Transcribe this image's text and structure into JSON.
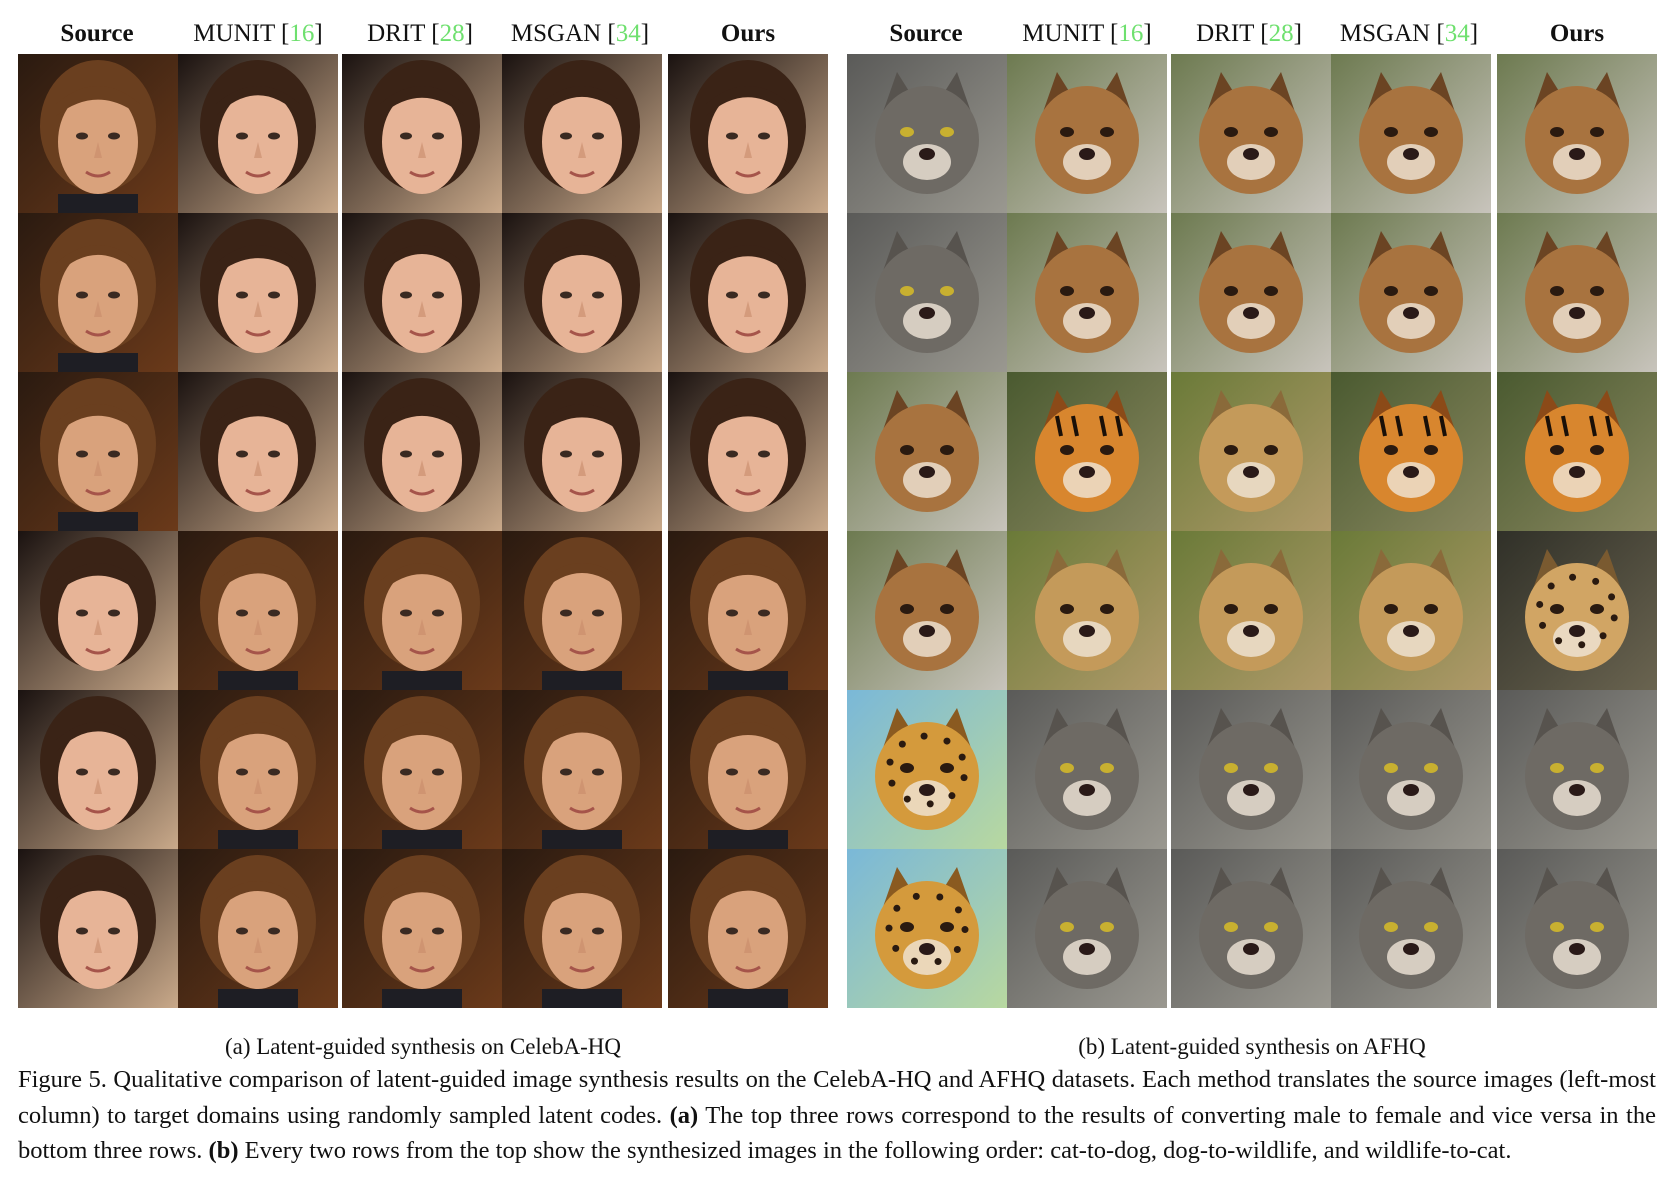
{
  "panels": [
    {
      "id": "a",
      "headers": [
        {
          "label": "Source",
          "ref": ""
        },
        {
          "label": "MUNIT [",
          "ref": "16",
          "close": "]"
        },
        {
          "label": "DRIT [",
          "ref": "28",
          "close": "]"
        },
        {
          "label": "MSGAN [",
          "ref": "34",
          "close": "]"
        },
        {
          "label": "Ours",
          "ref": ""
        }
      ],
      "subcaption": "(a) Latent-guided synthesis on CelebA-HQ",
      "rows": [
        {
          "subjects": [
            "male face",
            "female face",
            "female face",
            "female face",
            "female face"
          ]
        },
        {
          "subjects": [
            "male face",
            "female face",
            "female face",
            "female face",
            "female face"
          ]
        },
        {
          "subjects": [
            "male face",
            "female face",
            "female face",
            "female face",
            "female face"
          ]
        },
        {
          "subjects": [
            "female face",
            "male face",
            "male face",
            "male face",
            "male face"
          ]
        },
        {
          "subjects": [
            "female face",
            "male face",
            "male face",
            "male face",
            "male face"
          ]
        },
        {
          "subjects": [
            "female face",
            "male face",
            "male face",
            "male face",
            "male face"
          ]
        }
      ]
    },
    {
      "id": "b",
      "headers": [
        {
          "label": "Source",
          "ref": ""
        },
        {
          "label": "MUNIT [",
          "ref": "16",
          "close": "]"
        },
        {
          "label": "DRIT [",
          "ref": "28",
          "close": "]"
        },
        {
          "label": "MSGAN [",
          "ref": "34",
          "close": "]"
        },
        {
          "label": "Ours",
          "ref": ""
        }
      ],
      "subcaption": "(b) Latent-guided synthesis on AFHQ",
      "rows": [
        {
          "subjects": [
            "cat",
            "dog",
            "dog",
            "dog",
            "dog"
          ]
        },
        {
          "subjects": [
            "cat",
            "dog",
            "dog",
            "dog",
            "dog"
          ]
        },
        {
          "subjects": [
            "dog",
            "tiger",
            "lion",
            "tiger",
            "tiger"
          ]
        },
        {
          "subjects": [
            "dog",
            "lion",
            "lion",
            "lion",
            "cheetah"
          ]
        },
        {
          "subjects": [
            "leopard",
            "cat",
            "cat",
            "cat",
            "cat"
          ]
        },
        {
          "subjects": [
            "leopard",
            "cat",
            "cat",
            "cat",
            "cat"
          ]
        }
      ]
    }
  ],
  "caption": {
    "prefix": "Figure 5. Qualitative comparison of latent-guided image synthesis results on the CelebA-HQ and AFHQ datasets. Each method translates the source images (left-most column) to target domains using randomly sampled latent codes. ",
    "a_marker": "(a)",
    "a_text": " The top three rows correspond to the results of converting male to female and vice versa in the bottom three rows. ",
    "b_marker": "(b)",
    "b_text": " Every two rows from the top show the synthesized images in the following order: cat-to-dog, dog-to-wildlife, and wildlife-to-cat."
  },
  "colors": {
    "reference_green": "#6ee06e",
    "text": "#111111"
  }
}
